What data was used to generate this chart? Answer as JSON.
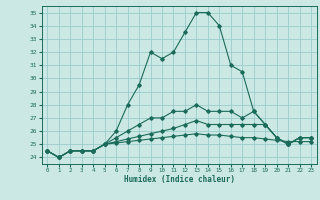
{
  "xlabel": "Humidex (Indice chaleur)",
  "bg_color": "#cce8e4",
  "grid_color": "#99cccc",
  "line_color": "#1a6b5a",
  "xlim": [
    -0.5,
    23.5
  ],
  "ylim": [
    23.5,
    35.5
  ],
  "yticks": [
    24,
    25,
    26,
    27,
    28,
    29,
    30,
    31,
    32,
    33,
    34,
    35
  ],
  "xticks": [
    0,
    1,
    2,
    3,
    4,
    5,
    6,
    7,
    8,
    9,
    10,
    11,
    12,
    13,
    14,
    15,
    16,
    17,
    18,
    19,
    20,
    21,
    22,
    23
  ],
  "curves": [
    [
      24.5,
      24.0,
      24.5,
      24.5,
      24.5,
      25.0,
      26.0,
      28.0,
      29.5,
      32.0,
      31.5,
      32.0,
      33.5,
      35.0,
      35.0,
      34.0,
      31.0,
      30.5,
      27.5,
      26.5,
      25.5,
      25.0,
      25.5,
      25.5
    ],
    [
      24.5,
      24.0,
      24.5,
      24.5,
      24.5,
      25.0,
      25.5,
      26.0,
      26.5,
      27.0,
      27.0,
      27.5,
      27.5,
      28.0,
      27.5,
      27.5,
      27.5,
      27.0,
      27.5,
      26.5,
      25.5,
      25.0,
      25.5,
      25.5
    ],
    [
      24.5,
      24.0,
      24.5,
      24.5,
      24.5,
      25.0,
      25.2,
      25.4,
      25.6,
      25.8,
      26.0,
      26.2,
      26.5,
      26.8,
      26.5,
      26.5,
      26.5,
      26.5,
      26.5,
      26.5,
      25.5,
      25.0,
      25.5,
      25.5
    ],
    [
      24.5,
      24.0,
      24.5,
      24.5,
      24.5,
      25.0,
      25.1,
      25.2,
      25.3,
      25.4,
      25.5,
      25.6,
      25.7,
      25.8,
      25.7,
      25.7,
      25.6,
      25.5,
      25.5,
      25.4,
      25.3,
      25.2,
      25.2,
      25.2
    ]
  ]
}
